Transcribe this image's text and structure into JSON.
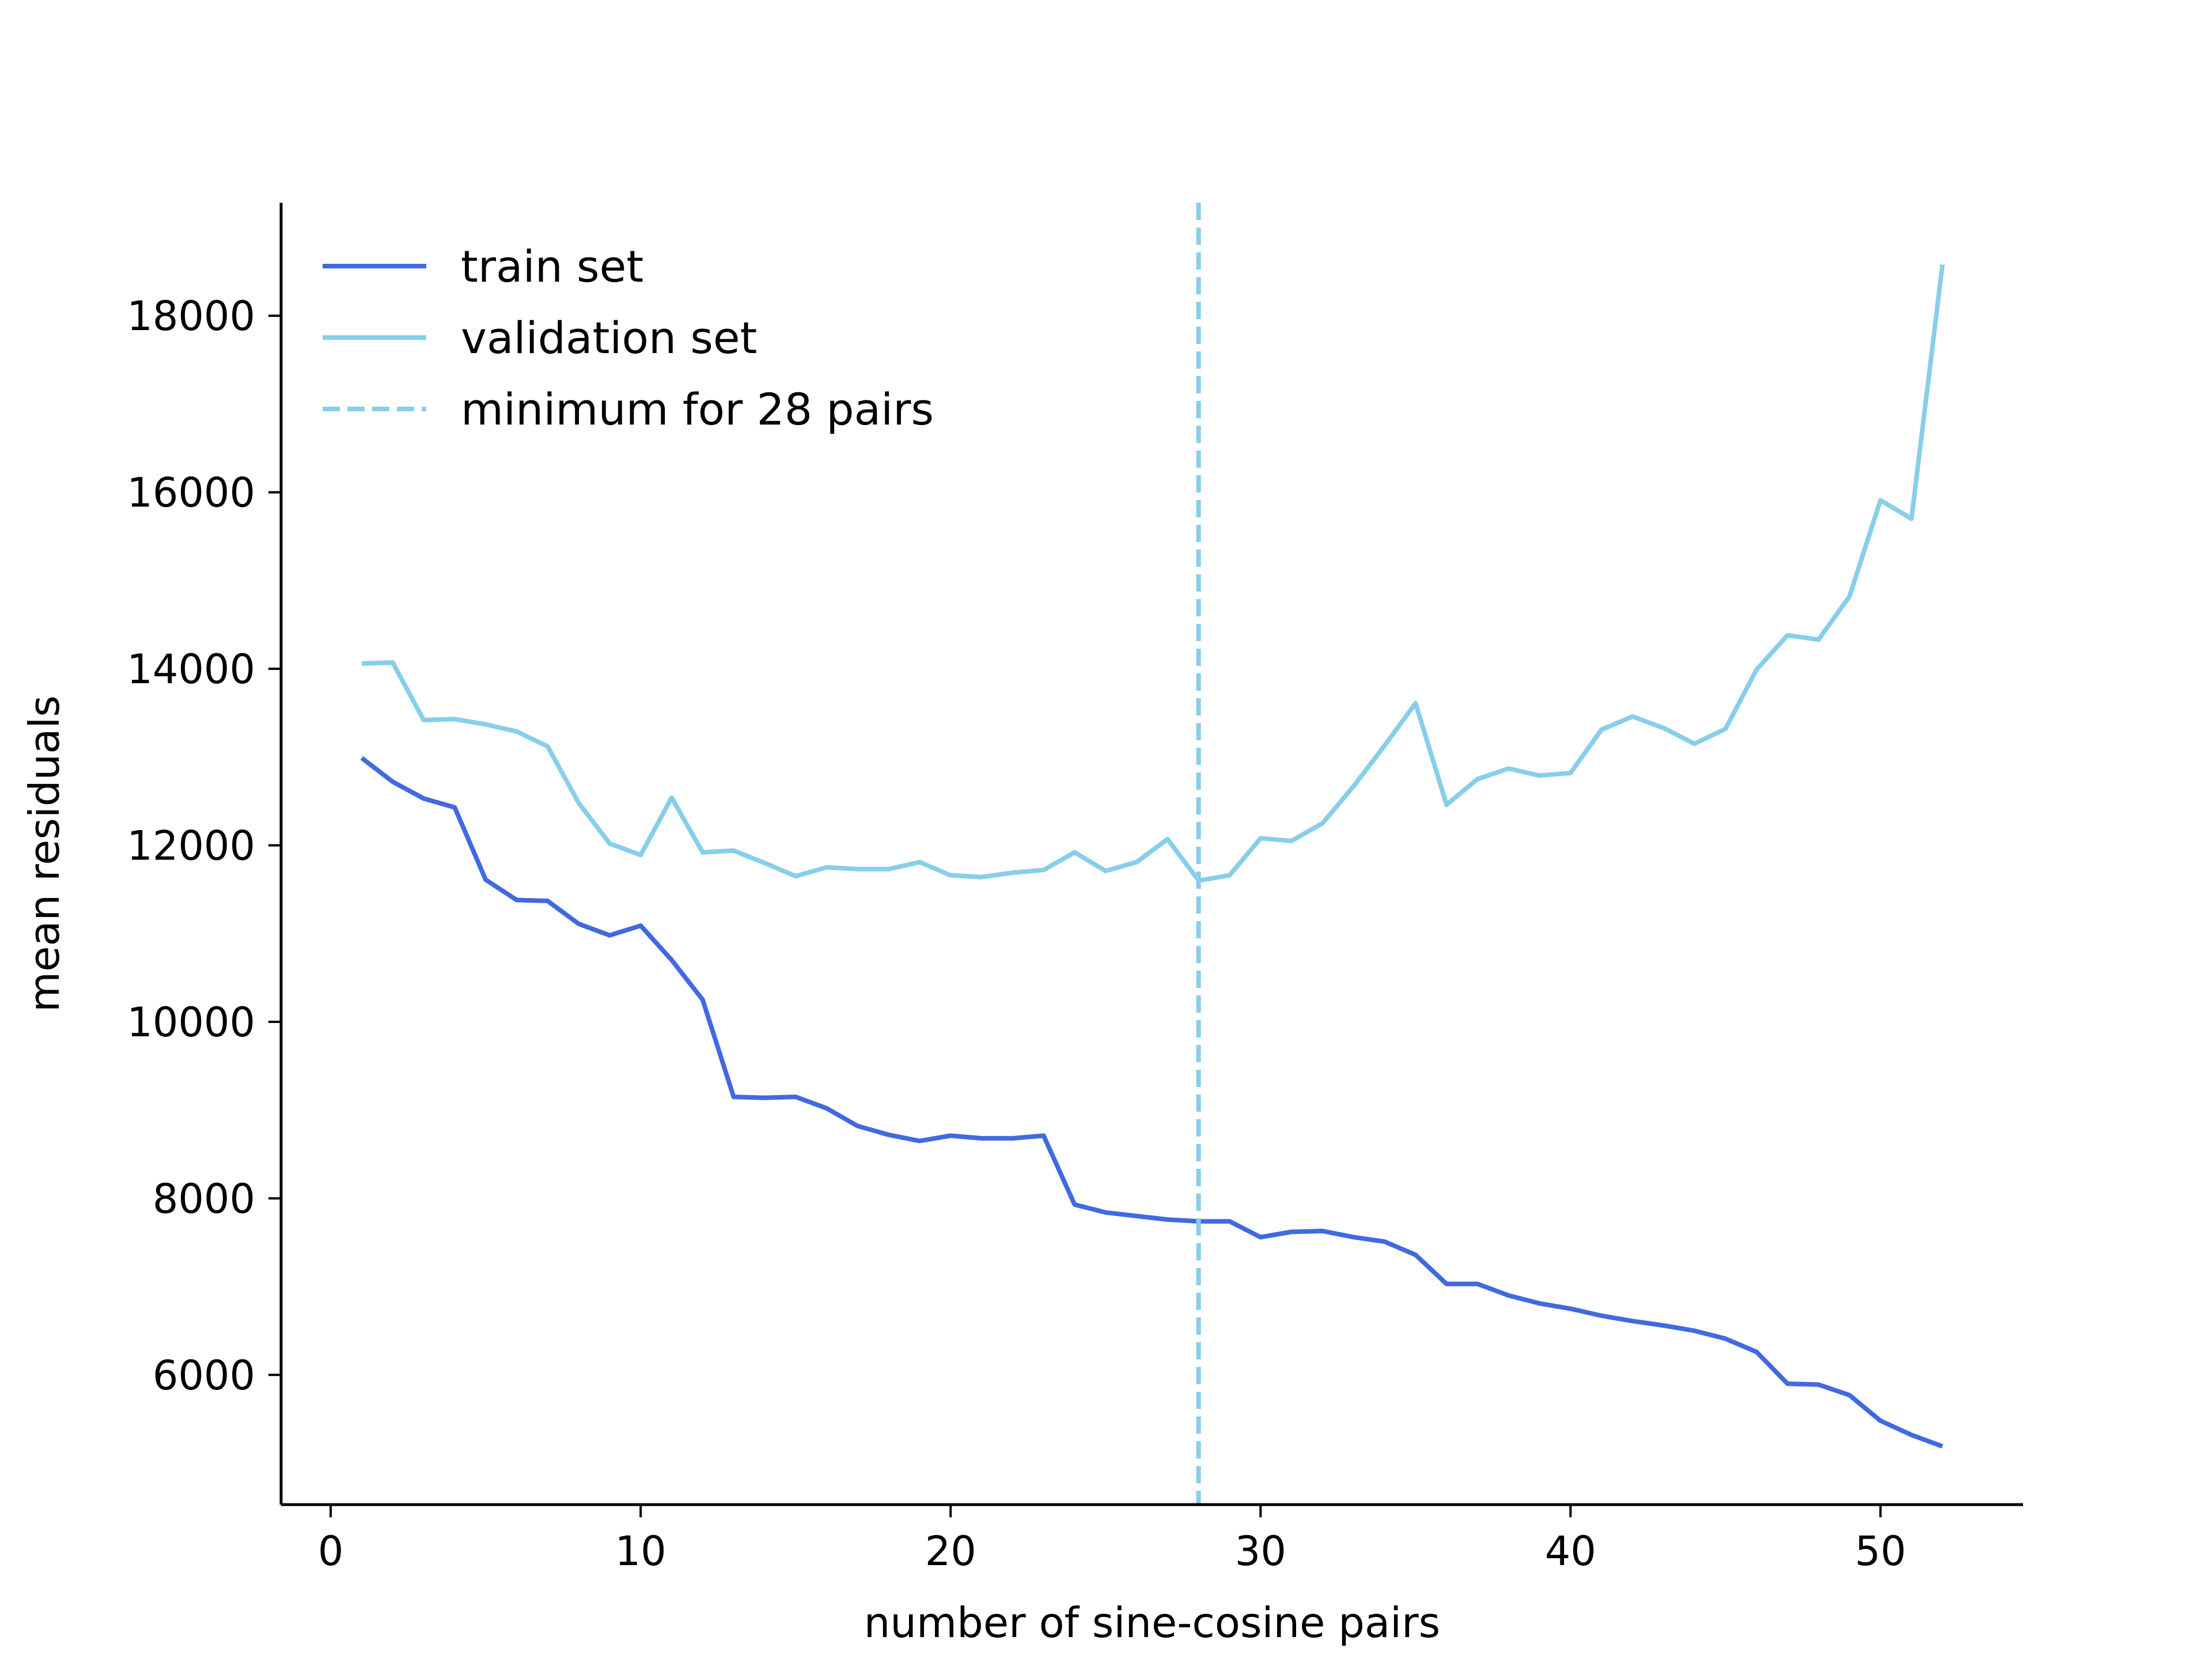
{
  "chart_data": {
    "type": "line",
    "title": "",
    "xlabel": "number of sine-cosine pairs",
    "ylabel": "mean residuals",
    "xlim": [
      -1.6,
      54.6
    ],
    "ylim": [
      4530,
      19280
    ],
    "xticks": [
      0,
      10,
      20,
      30,
      40,
      50
    ],
    "yticks": [
      6000,
      8000,
      10000,
      12000,
      14000,
      16000,
      18000
    ],
    "x": [
      1,
      2,
      3,
      4,
      5,
      6,
      7,
      8,
      9,
      10,
      11,
      12,
      13,
      14,
      15,
      16,
      17,
      18,
      19,
      20,
      21,
      22,
      23,
      24,
      25,
      26,
      27,
      28,
      29,
      30,
      31,
      32,
      33,
      34,
      35,
      36,
      37,
      38,
      39,
      40,
      41,
      42,
      43,
      44,
      45,
      46,
      47,
      48,
      49,
      50,
      51,
      52
    ],
    "series": [
      {
        "name": "train set",
        "color": "#4169E1",
        "style": "solid",
        "values": [
          12990,
          12720,
          12530,
          12430,
          11610,
          11380,
          11370,
          11110,
          10980,
          11090,
          10700,
          10250,
          9150,
          9140,
          9150,
          9020,
          8820,
          8720,
          8650,
          8710,
          8680,
          8680,
          8710,
          7930,
          7840,
          7800,
          7760,
          7740,
          7740,
          7560,
          7620,
          7630,
          7560,
          7510,
          7360,
          7030,
          7030,
          6900,
          6810,
          6750,
          6670,
          6610,
          6560,
          6500,
          6410,
          6260,
          5900,
          5890,
          5770,
          5480,
          5320,
          5190
        ]
      },
      {
        "name": "validation set",
        "color": "#87CEEB",
        "style": "solid",
        "values": [
          14060,
          14070,
          13420,
          13430,
          13370,
          13290,
          13120,
          12480,
          12020,
          11890,
          12540,
          11920,
          11940,
          11800,
          11650,
          11750,
          11730,
          11730,
          11810,
          11660,
          11640,
          11690,
          11720,
          11920,
          11710,
          11810,
          12070,
          11600,
          11660,
          12080,
          12050,
          12250,
          12670,
          13130,
          13610,
          12460,
          12750,
          12870,
          12790,
          12820,
          13310,
          13460,
          13330,
          13150,
          13320,
          13990,
          14380,
          14330,
          14820,
          15910,
          15700,
          18580
        ]
      }
    ],
    "vline": {
      "name": "minimum for 28 pairs",
      "x": 28,
      "color": "#87CEEB",
      "style": "dashed"
    },
    "legend": {
      "position": "top-left",
      "entries": [
        "train set",
        "validation set",
        "minimum for 28 pairs"
      ]
    },
    "grid": false
  }
}
